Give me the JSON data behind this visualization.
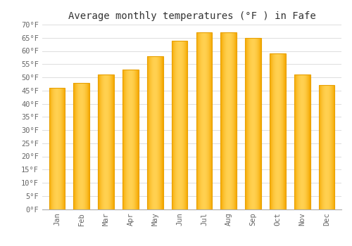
{
  "title": "Average monthly temperatures (°F ) in Fafe",
  "months": [
    "Jan",
    "Feb",
    "Mar",
    "Apr",
    "May",
    "Jun",
    "Jul",
    "Aug",
    "Sep",
    "Oct",
    "Nov",
    "Dec"
  ],
  "values": [
    46,
    48,
    51,
    53,
    58,
    64,
    67,
    67,
    65,
    59,
    51,
    47
  ],
  "bar_color_face": "#FFBB33",
  "bar_color_edge": "#E8A000",
  "background_color": "#FFFFFF",
  "plot_bg_color": "#FFFFFF",
  "grid_color": "#DDDDDD",
  "ylim": [
    0,
    70
  ],
  "yticks": [
    0,
    5,
    10,
    15,
    20,
    25,
    30,
    35,
    40,
    45,
    50,
    55,
    60,
    65,
    70
  ],
  "title_fontsize": 10,
  "tick_fontsize": 7.5,
  "tick_font": "monospace",
  "bar_width": 0.65
}
